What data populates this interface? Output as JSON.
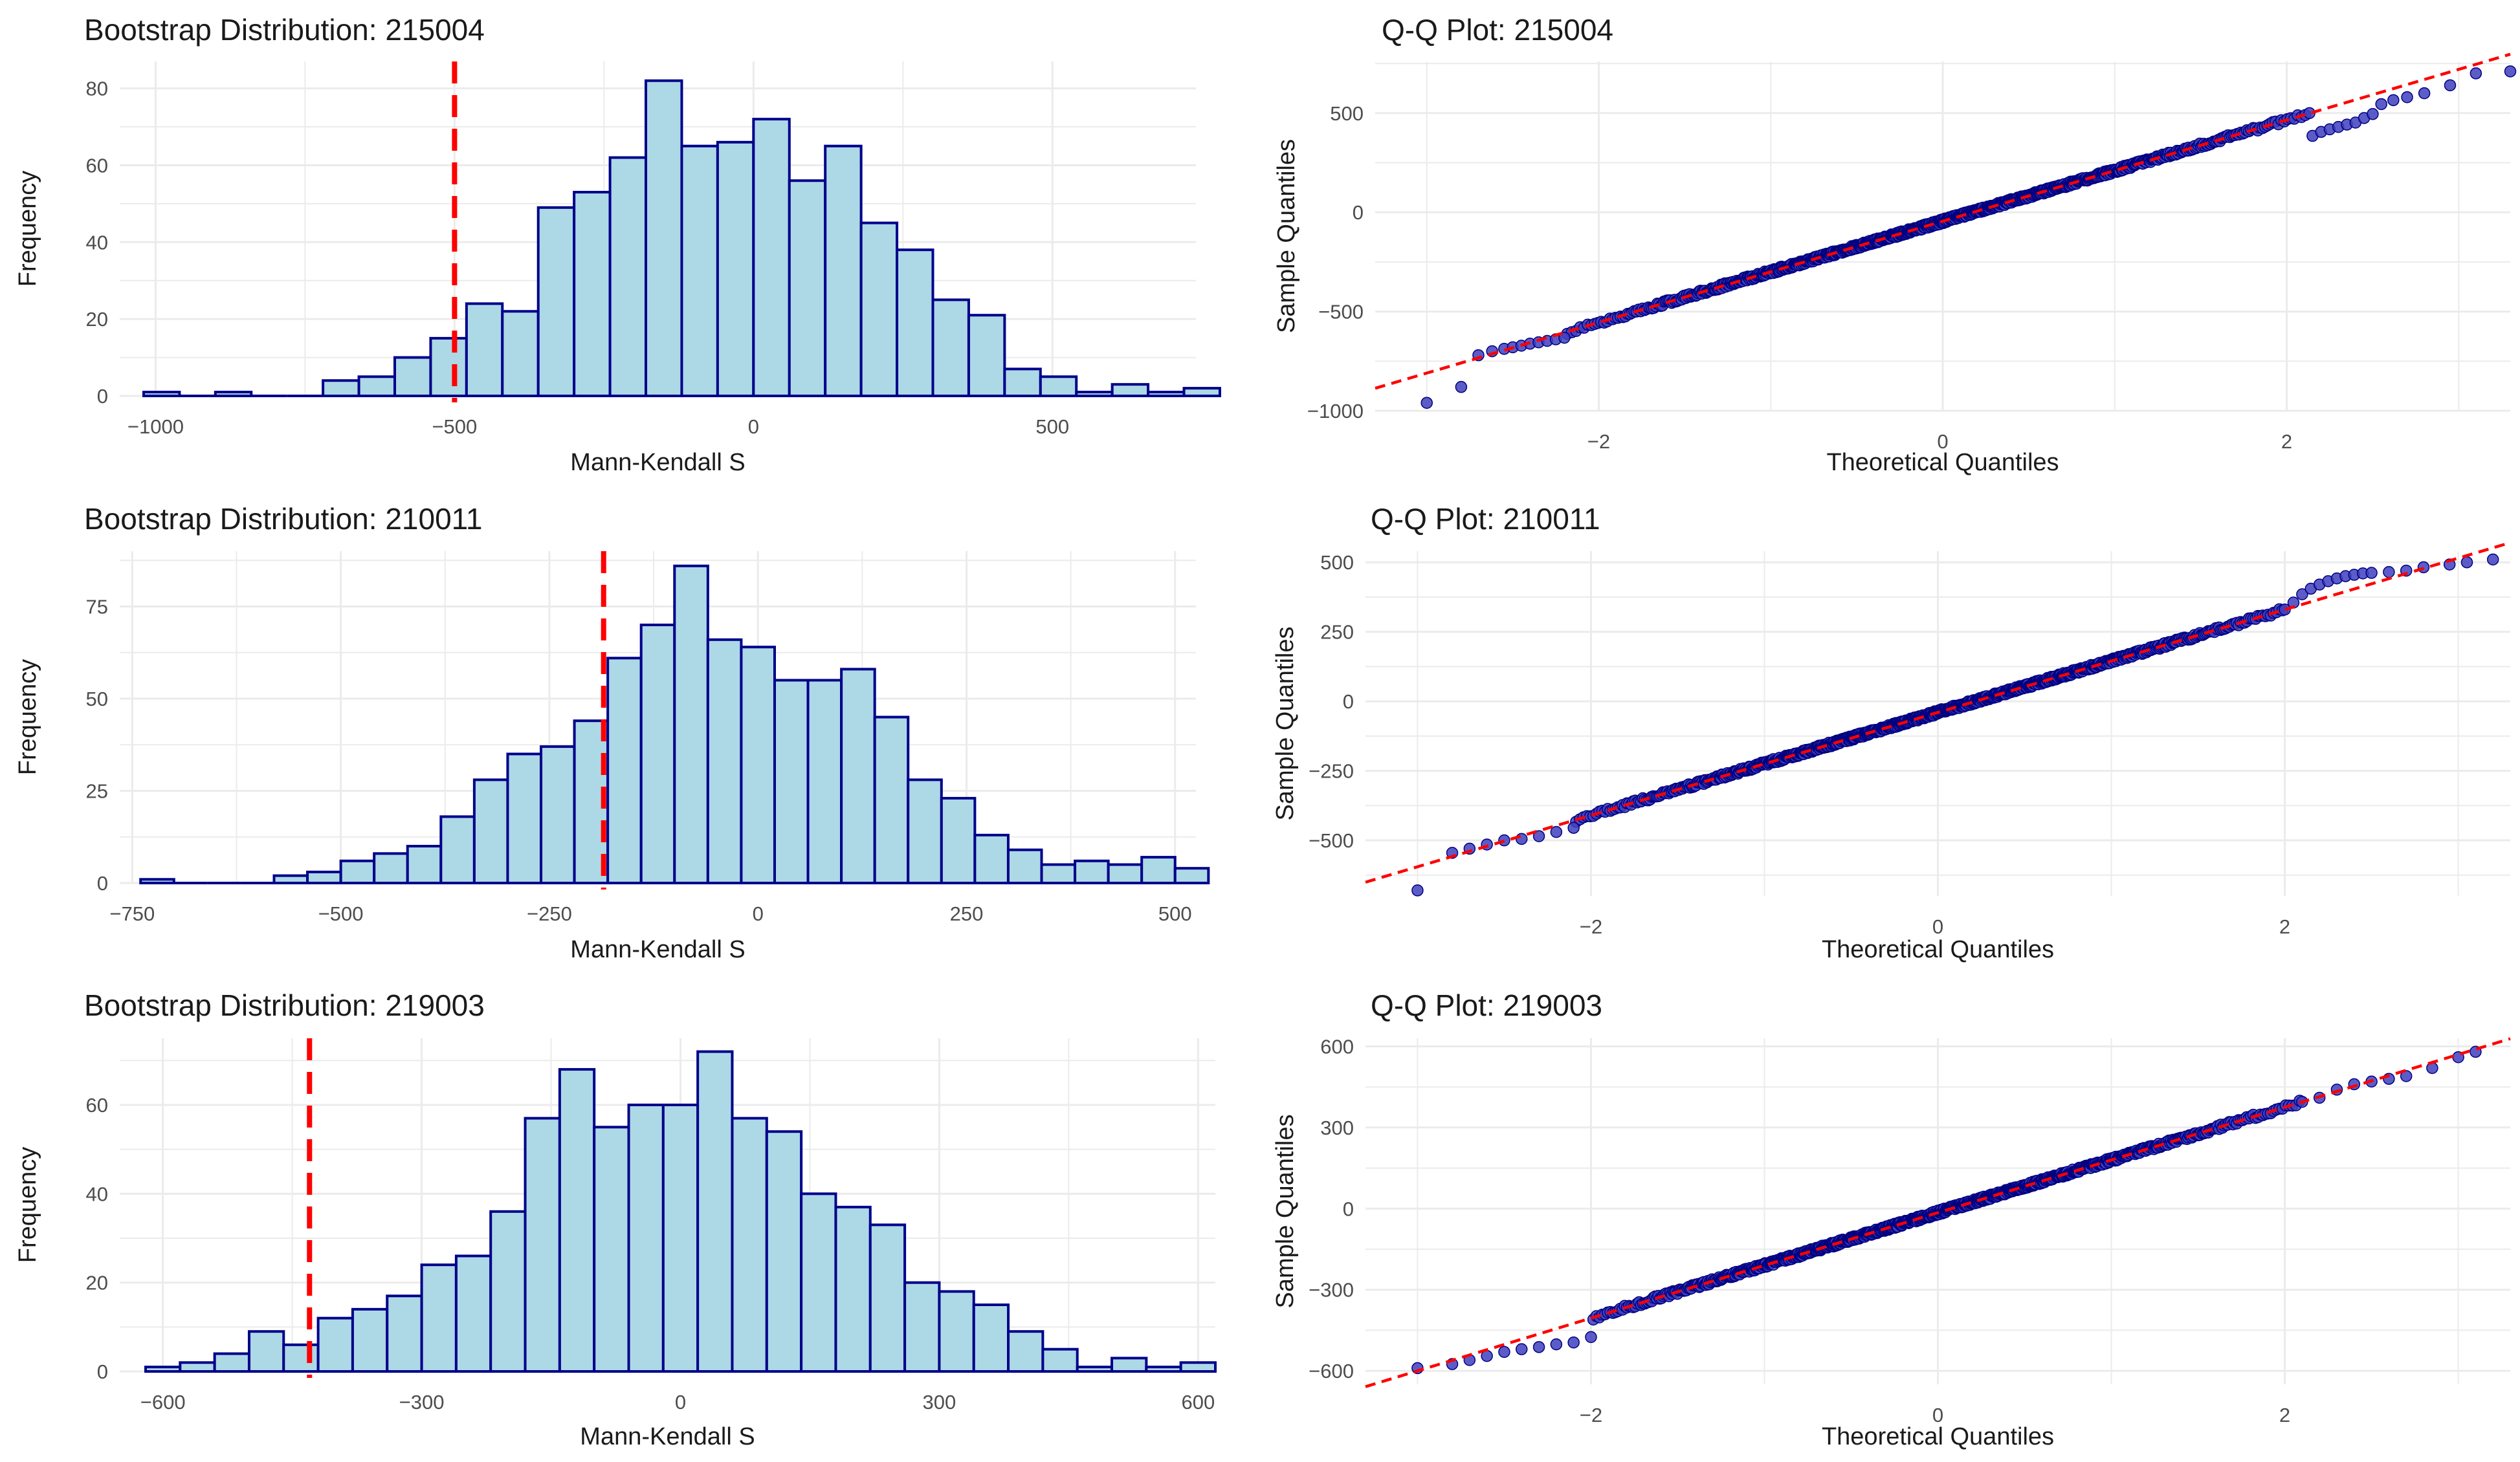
{
  "colors": {
    "hist_fill": "#add8e6",
    "hist_stroke": "#00008b",
    "ref_line": "#ff0000",
    "qq_point_fill": "#4040c0",
    "qq_point_stroke": "#000080",
    "grid": "#ebebeb",
    "text": "#1a1a1a",
    "tick_text": "#4d4d4d"
  },
  "chart_data": [
    {
      "type": "bar",
      "title": "Bootstrap Distribution: 215004",
      "xlabel": "Mann-Kendall S",
      "ylabel": "Frequency",
      "xlim": [
        -1060,
        740
      ],
      "ylim": [
        0,
        87
      ],
      "xticks": [
        -1000,
        -500,
        0,
        500
      ],
      "xtick_labels": [
        "−1000",
        "−500",
        "0",
        "500"
      ],
      "yticks": [
        0,
        20,
        40,
        60,
        80
      ],
      "ytick_labels": [
        "0",
        "20",
        "40",
        "60",
        "80"
      ],
      "bins": [
        [
          -1020,
          -960,
          1
        ],
        [
          -960,
          -900,
          0
        ],
        [
          -900,
          -840,
          1
        ],
        [
          -840,
          -780,
          0
        ],
        [
          -780,
          -720,
          0
        ],
        [
          -720,
          -660,
          4
        ],
        [
          -660,
          -600,
          5
        ],
        [
          -600,
          -540,
          10
        ],
        [
          -540,
          -480,
          15
        ],
        [
          -480,
          -420,
          24
        ],
        [
          -420,
          -360,
          22
        ],
        [
          -360,
          -300,
          49
        ],
        [
          -300,
          -240,
          53
        ],
        [
          -240,
          -180,
          62
        ],
        [
          -180,
          -120,
          82
        ],
        [
          -120,
          -60,
          65
        ],
        [
          -60,
          0,
          66
        ],
        [
          0,
          60,
          72
        ],
        [
          60,
          120,
          56
        ],
        [
          120,
          180,
          65
        ],
        [
          180,
          240,
          45
        ],
        [
          240,
          300,
          38
        ],
        [
          300,
          360,
          25
        ],
        [
          360,
          420,
          21
        ],
        [
          420,
          480,
          7
        ],
        [
          480,
          540,
          5
        ],
        [
          540,
          600,
          1
        ],
        [
          600,
          660,
          3
        ],
        [
          660,
          720,
          1
        ],
        [
          720,
          780,
          2
        ]
      ],
      "ref_line_x": -500
    },
    {
      "type": "scatter",
      "title": "Q-Q Plot: 215004",
      "xlabel": "Theoretical Quantiles",
      "ylabel": "Sample Quantiles",
      "xlim": [
        -3.3,
        3.3
      ],
      "ylim": [
        -1000,
        760
      ],
      "xticks": [
        -2,
        0,
        2
      ],
      "xtick_labels": [
        "−2",
        "0",
        "2"
      ],
      "yticks": [
        -1000,
        -500,
        0,
        500
      ],
      "ytick_labels": [
        "−1000",
        "−500",
        "0",
        "500"
      ],
      "line": {
        "intercept": -45,
        "slope": 255
      },
      "tails_low": [
        [
          -3.0,
          -960
        ],
        [
          -2.8,
          -880
        ],
        [
          -2.7,
          -720
        ],
        [
          -2.62,
          -700
        ],
        [
          -2.55,
          -688
        ],
        [
          -2.5,
          -680
        ],
        [
          -2.45,
          -672
        ],
        [
          -2.4,
          -662
        ],
        [
          -2.35,
          -655
        ],
        [
          -2.3,
          -648
        ],
        [
          -2.25,
          -640
        ],
        [
          -2.2,
          -632
        ]
      ],
      "tails_high": [
        [
          2.15,
          385
        ],
        [
          2.2,
          405
        ],
        [
          2.25,
          418
        ],
        [
          2.3,
          430
        ],
        [
          2.35,
          442
        ],
        [
          2.4,
          452
        ],
        [
          2.45,
          475
        ],
        [
          2.5,
          495
        ],
        [
          2.55,
          545
        ],
        [
          2.62,
          565
        ],
        [
          2.7,
          580
        ],
        [
          2.8,
          600
        ],
        [
          2.95,
          640
        ],
        [
          3.1,
          700
        ],
        [
          3.3,
          710
        ]
      ]
    },
    {
      "type": "bar",
      "title": "Bootstrap Distribution: 210011",
      "xlabel": "Mann-Kendall S",
      "ylabel": "Frequency",
      "xlim": [
        -765,
        525
      ],
      "ylim": [
        0,
        90
      ],
      "xticks": [
        -750,
        -500,
        -250,
        0,
        250,
        500
      ],
      "xtick_labels": [
        "−750",
        "−500",
        "−250",
        "0",
        "250",
        "500"
      ],
      "yticks": [
        0,
        25,
        50,
        75
      ],
      "ytick_labels": [
        "0",
        "25",
        "50",
        "75"
      ],
      "bins": [
        [
          -740,
          -700,
          1
        ],
        [
          -700,
          -660,
          0
        ],
        [
          -660,
          -620,
          0
        ],
        [
          -620,
          -580,
          0
        ],
        [
          -580,
          -540,
          2
        ],
        [
          -540,
          -500,
          3
        ],
        [
          -500,
          -460,
          6
        ],
        [
          -460,
          -420,
          8
        ],
        [
          -420,
          -380,
          10
        ],
        [
          -380,
          -340,
          18
        ],
        [
          -340,
          -300,
          28
        ],
        [
          -300,
          -260,
          35
        ],
        [
          -260,
          -220,
          37
        ],
        [
          -220,
          -180,
          44
        ],
        [
          -180,
          -140,
          61
        ],
        [
          -140,
          -100,
          70
        ],
        [
          -100,
          -60,
          86
        ],
        [
          -60,
          -20,
          66
        ],
        [
          -20,
          20,
          64
        ],
        [
          20,
          60,
          55
        ],
        [
          60,
          100,
          55
        ],
        [
          100,
          140,
          58
        ],
        [
          140,
          180,
          45
        ],
        [
          180,
          220,
          28
        ],
        [
          220,
          260,
          23
        ],
        [
          260,
          300,
          13
        ],
        [
          300,
          340,
          9
        ],
        [
          340,
          380,
          5
        ],
        [
          380,
          420,
          6
        ],
        [
          420,
          460,
          5
        ],
        [
          460,
          500,
          7
        ],
        [
          500,
          540,
          4
        ]
      ],
      "ref_line_x": -185
    },
    {
      "type": "scatter",
      "title": "Q-Q Plot: 210011",
      "xlabel": "Theoretical Quantiles",
      "ylabel": "Sample Quantiles",
      "xlim": [
        -3.3,
        3.3
      ],
      "ylim": [
        -700,
        540
      ],
      "xticks": [
        -2,
        0,
        2
      ],
      "xtick_labels": [
        "−2",
        "0",
        "2"
      ],
      "yticks": [
        -500,
        -250,
        0,
        250,
        500
      ],
      "ytick_labels": [
        "−500",
        "−250",
        "0",
        "250",
        "500"
      ],
      "line": {
        "intercept": -40,
        "slope": 185
      },
      "tails_low": [
        [
          -3.0,
          -680
        ],
        [
          -2.8,
          -545
        ],
        [
          -2.7,
          -530
        ],
        [
          -2.6,
          -515
        ],
        [
          -2.5,
          -500
        ],
        [
          -2.4,
          -495
        ],
        [
          -2.3,
          -485
        ],
        [
          -2.2,
          -470
        ],
        [
          -2.1,
          -455
        ]
      ],
      "tails_high": [
        [
          2.0,
          330
        ],
        [
          2.05,
          355
        ],
        [
          2.1,
          385
        ],
        [
          2.15,
          405
        ],
        [
          2.2,
          420
        ],
        [
          2.25,
          432
        ],
        [
          2.3,
          442
        ],
        [
          2.35,
          450
        ],
        [
          2.4,
          455
        ],
        [
          2.45,
          460
        ],
        [
          2.5,
          462
        ],
        [
          2.6,
          465
        ],
        [
          2.7,
          470
        ],
        [
          2.8,
          482
        ],
        [
          2.95,
          492
        ],
        [
          3.05,
          500
        ],
        [
          3.2,
          510
        ]
      ]
    },
    {
      "type": "bar",
      "title": "Bootstrap Distribution: 219003",
      "xlabel": "Mann-Kendall S",
      "ylabel": "Frequency",
      "xlim": [
        -650,
        620
      ],
      "ylim": [
        0,
        75
      ],
      "xticks": [
        -600,
        -300,
        0,
        300,
        600
      ],
      "xtick_labels": [
        "−600",
        "−300",
        "0",
        "300",
        "600"
      ],
      "yticks": [
        0,
        20,
        40,
        60
      ],
      "ytick_labels": [
        "0",
        "20",
        "40",
        "60"
      ],
      "bins": [
        [
          -620,
          -580,
          1
        ],
        [
          -580,
          -540,
          2
        ],
        [
          -540,
          -500,
          4
        ],
        [
          -500,
          -460,
          9
        ],
        [
          -460,
          -420,
          6
        ],
        [
          -420,
          -380,
          12
        ],
        [
          -380,
          -340,
          14
        ],
        [
          -340,
          -300,
          17
        ],
        [
          -300,
          -260,
          24
        ],
        [
          -260,
          -220,
          26
        ],
        [
          -220,
          -180,
          36
        ],
        [
          -180,
          -140,
          57
        ],
        [
          -140,
          -100,
          68
        ],
        [
          -100,
          -60,
          55
        ],
        [
          -60,
          -20,
          60
        ],
        [
          -20,
          20,
          60
        ],
        [
          20,
          60,
          72
        ],
        [
          60,
          100,
          57
        ],
        [
          100,
          140,
          54
        ],
        [
          140,
          180,
          40
        ],
        [
          180,
          220,
          37
        ],
        [
          220,
          260,
          33
        ],
        [
          260,
          300,
          20
        ],
        [
          300,
          340,
          18
        ],
        [
          340,
          380,
          15
        ],
        [
          380,
          420,
          9
        ],
        [
          420,
          460,
          5
        ],
        [
          460,
          500,
          1
        ],
        [
          500,
          540,
          3
        ],
        [
          540,
          580,
          1
        ],
        [
          580,
          620,
          2
        ]
      ],
      "ref_line_x": -430
    },
    {
      "type": "scatter",
      "title": "Q-Q Plot: 219003",
      "xlabel": "Theoretical Quantiles",
      "ylabel": "Sample Quantiles",
      "xlim": [
        -3.3,
        3.3
      ],
      "ylim": [
        -650,
        630
      ],
      "xticks": [
        -2,
        0,
        2
      ],
      "xtick_labels": [
        "−2",
        "0",
        "2"
      ],
      "yticks": [
        -600,
        -300,
        0,
        300,
        600
      ],
      "ytick_labels": [
        "−600",
        "−300",
        "0",
        "300",
        "600"
      ],
      "line": {
        "intercept": -15,
        "slope": 195
      },
      "tails_low": [
        [
          -3.0,
          -590
        ],
        [
          -2.8,
          -575
        ],
        [
          -2.7,
          -560
        ],
        [
          -2.6,
          -545
        ],
        [
          -2.5,
          -530
        ],
        [
          -2.4,
          -520
        ],
        [
          -2.3,
          -512
        ],
        [
          -2.2,
          -502
        ],
        [
          -2.1,
          -495
        ],
        [
          -2.0,
          -475
        ]
      ],
      "tails_high": [
        [
          2.1,
          395
        ],
        [
          2.2,
          410
        ],
        [
          2.3,
          440
        ],
        [
          2.4,
          460
        ],
        [
          2.5,
          470
        ],
        [
          2.6,
          480
        ],
        [
          2.7,
          490
        ],
        [
          2.85,
          520
        ],
        [
          3.0,
          560
        ],
        [
          3.1,
          580
        ]
      ]
    }
  ]
}
